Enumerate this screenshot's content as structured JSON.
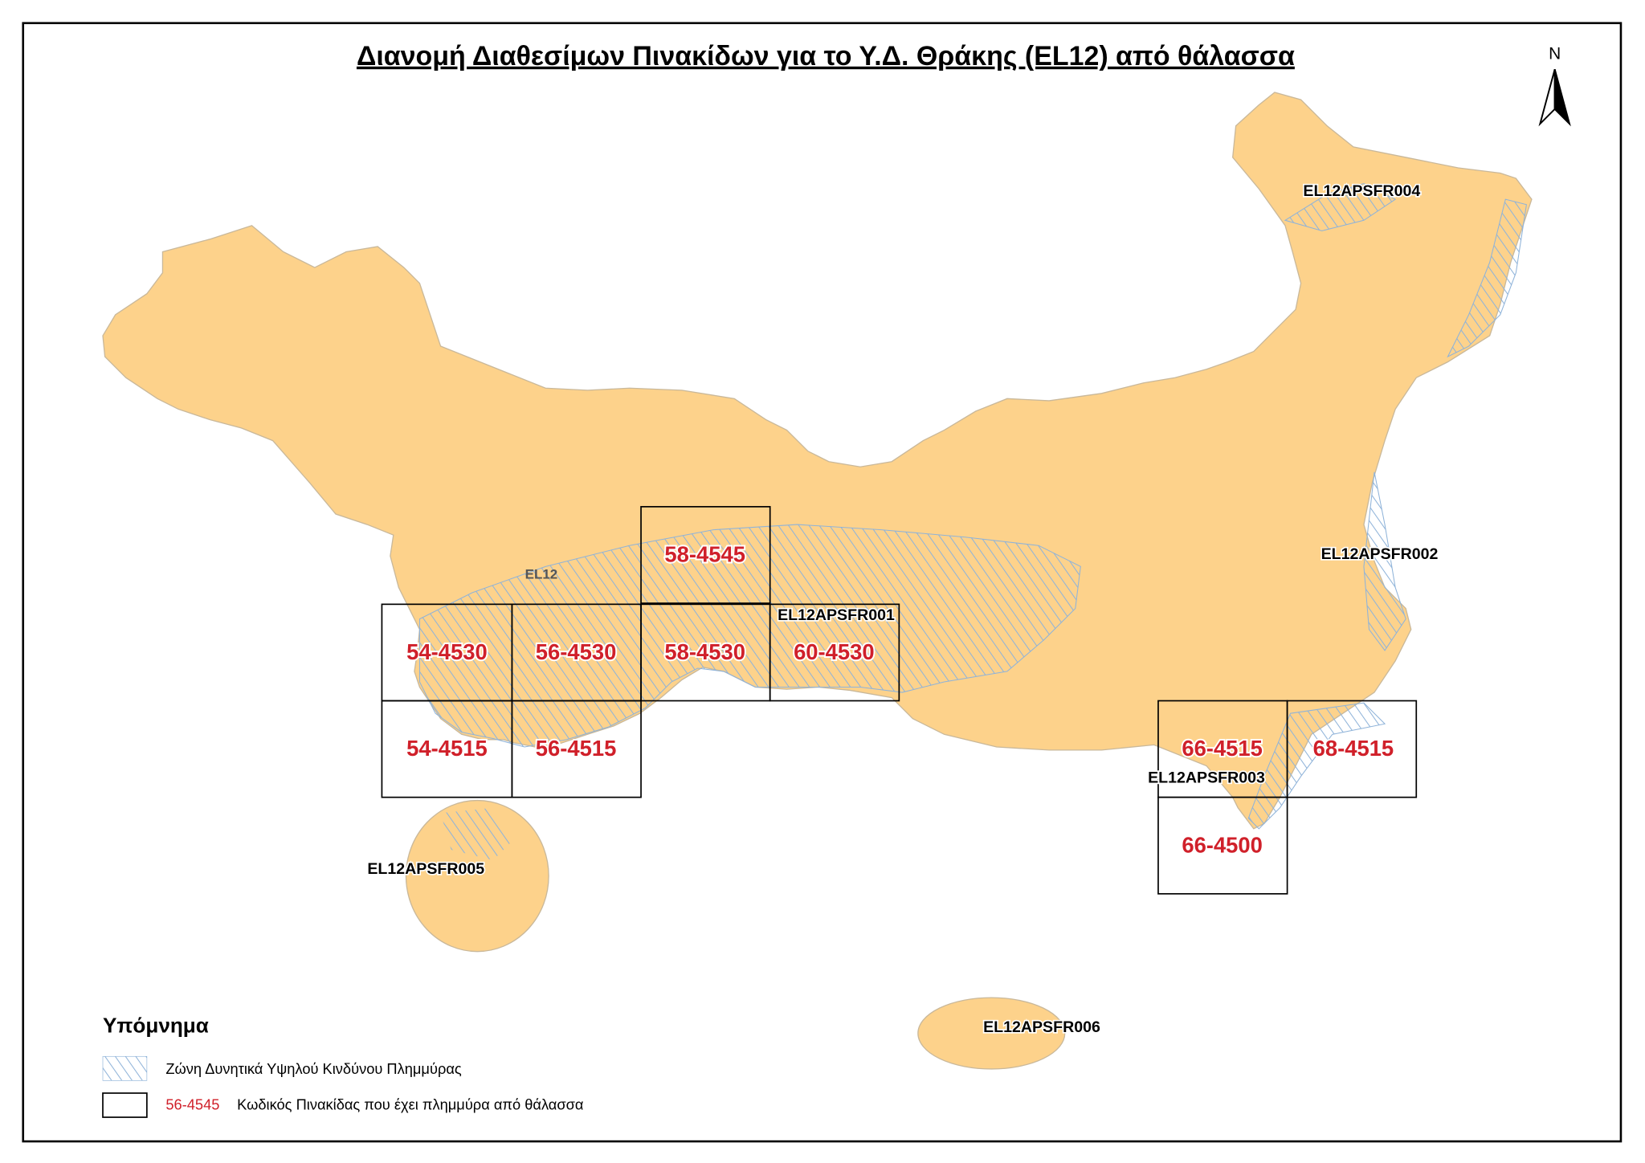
{
  "title": "Διανομή Διαθεσίμων Πινακίδων για το Υ.Δ. Θράκης (EL12) από θάλασσα",
  "north": "N",
  "district": "EL12",
  "areas": [
    "EL12APSFR004",
    "EL12APSFR002",
    "EL12APSFR001",
    "EL12APSFR003",
    "EL12APSFR005",
    "EL12APSFR006"
  ],
  "tiles": [
    "58-4545",
    "54-4530",
    "56-4530",
    "58-4530",
    "60-4530",
    "54-4515",
    "56-4515",
    "66-4515",
    "68-4515",
    "66-4500"
  ],
  "legend": {
    "title": "Υπόμνημα",
    "hatch_label": "Ζώνη Δυνητικά Υψηλού Κινδύνου Πλημμύρας",
    "tile_example": "56-4545",
    "tile_label": "Κωδικός Πινακίδας που έχει πλημμύρα από θάλασσα"
  }
}
